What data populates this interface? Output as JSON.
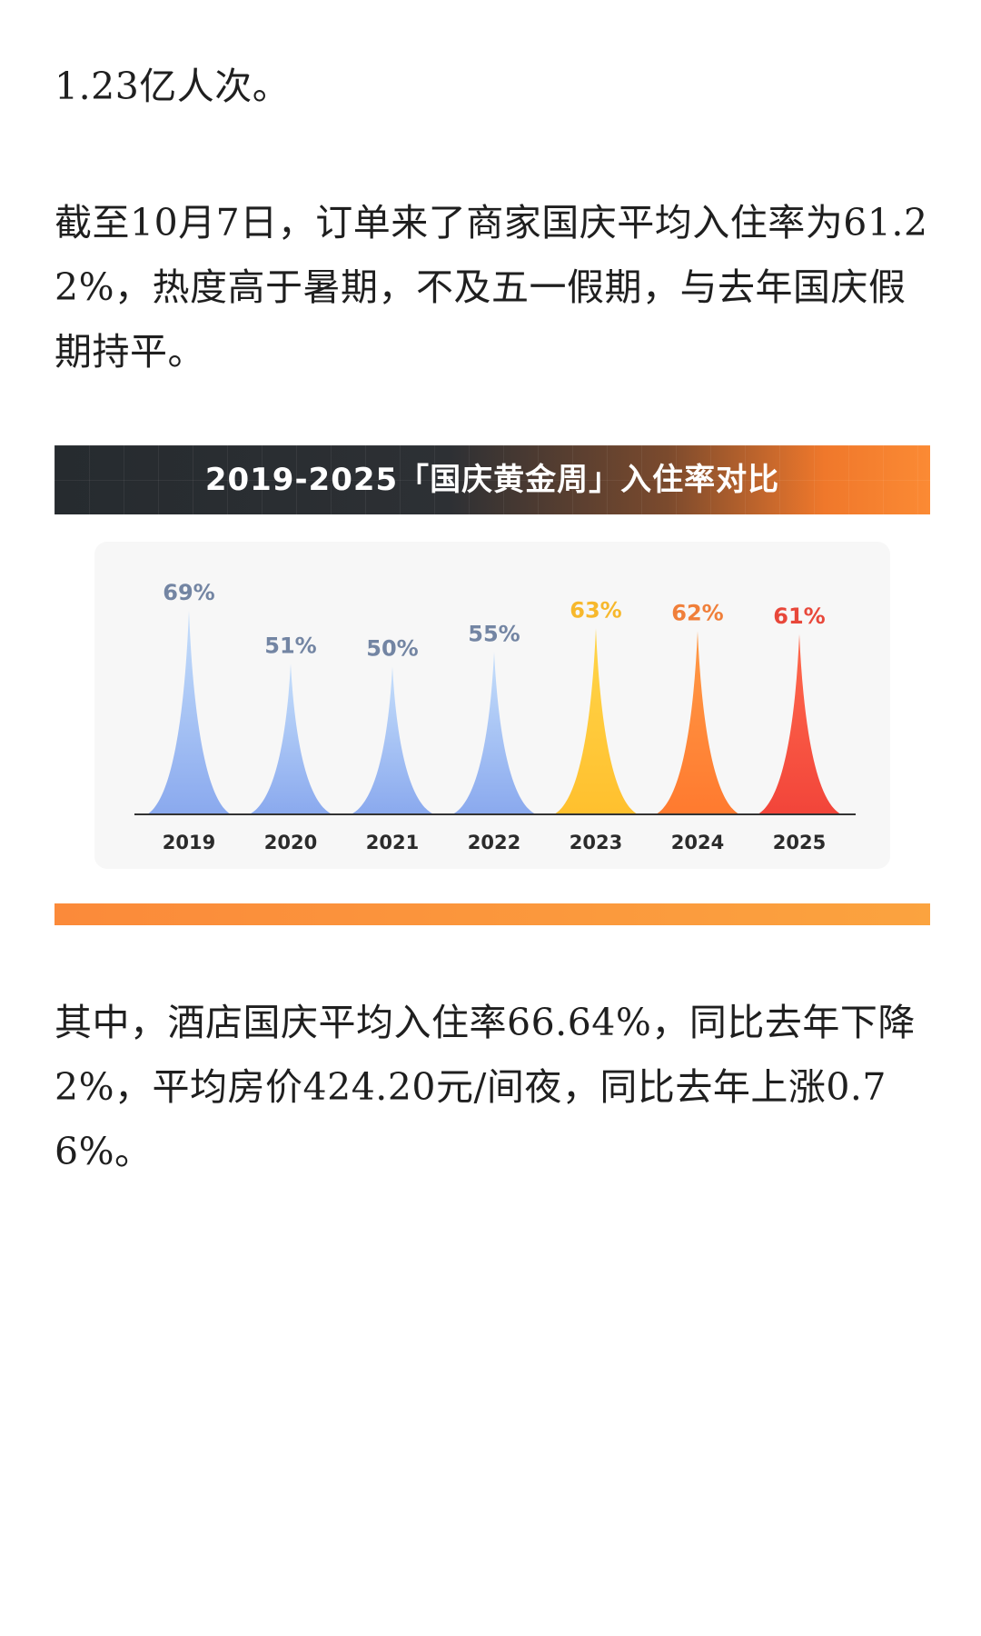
{
  "paragraphs": {
    "p1": "1.23亿人次。",
    "p2": "截至10月7日，订单来了商家国庆平均入住率为61.22%，热度高于暑期，不及五一假期，与去年国庆假期持平。",
    "p3": "其中，酒店国庆平均入住率66.64%，同比去年下降2%，平均房价424.20元/间夜，同比去年上涨0.76%。"
  },
  "chart_data": {
    "type": "area",
    "title": "2019-2025「国庆黄金周」入住率对比",
    "categories": [
      "2019",
      "2020",
      "2021",
      "2022",
      "2023",
      "2024",
      "2025"
    ],
    "values": [
      69,
      51,
      50,
      55,
      63,
      62,
      61
    ],
    "labels": [
      "69%",
      "51%",
      "50%",
      "55%",
      "63%",
      "62%",
      "61%"
    ],
    "unit": "%",
    "ylim": [
      0,
      75
    ],
    "grid": false,
    "legend": "none",
    "colors": [
      [
        "#c6dffb",
        "#8aa9ee"
      ],
      [
        "#c6dffb",
        "#8aa9ee"
      ],
      [
        "#c6dffb",
        "#8aa9ee"
      ],
      [
        "#c6dffb",
        "#8aa9ee"
      ],
      [
        "#ffd54a",
        "#ffc02e"
      ],
      [
        "#ff9a47",
        "#ff7a2f"
      ],
      [
        "#ff6a4d",
        "#f2453a"
      ]
    ],
    "label_colors": [
      "#7385a3",
      "#7385a3",
      "#7385a3",
      "#7385a3",
      "#f7b82c",
      "#f07f3a",
      "#e8473a"
    ],
    "axis_color": "#333333"
  }
}
